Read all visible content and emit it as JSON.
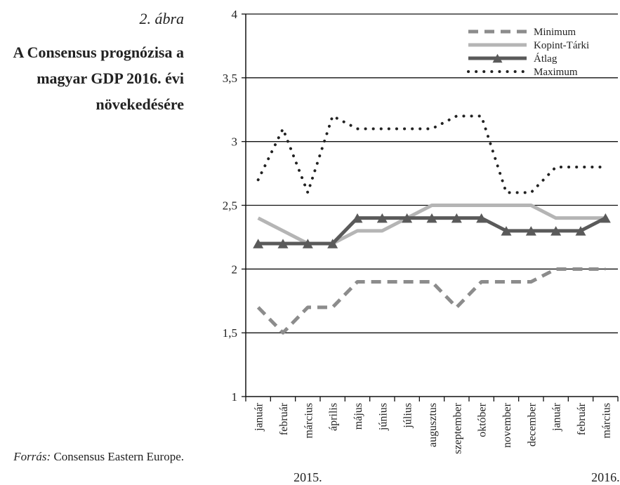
{
  "figure": {
    "number": "2. ábra",
    "title": "A Consensus prognózisa a magyar GDP 2016. évi növekedésére",
    "source_label": "Forrás:",
    "source_text": "Consensus Eastern Europe."
  },
  "chart_data": {
    "type": "line",
    "title": "",
    "xlabel": "",
    "ylabel": "",
    "categories": [
      "január",
      "február",
      "március",
      "április",
      "május",
      "június",
      "július",
      "augusztus",
      "szeptember",
      "október",
      "november",
      "december",
      "január",
      "február",
      "március"
    ],
    "year_labels": [
      {
        "text": "2015.",
        "index": 2
      },
      {
        "text": "2016.",
        "index": 14
      }
    ],
    "ylim": [
      1,
      4
    ],
    "yticks": [
      1,
      1.5,
      2,
      2.5,
      3,
      3.5,
      4
    ],
    "ytick_labels": [
      "1",
      "1,5",
      "2",
      "2,5",
      "3",
      "3,5",
      "4"
    ],
    "grid": true,
    "legend_position": "top-right",
    "series": [
      {
        "name": "Minimum",
        "style": "dashed",
        "color": "#8c8c8c",
        "values": [
          1.7,
          1.5,
          1.7,
          1.7,
          1.9,
          1.9,
          1.9,
          1.9,
          1.7,
          1.9,
          1.9,
          1.9,
          2.0,
          2.0,
          2.0
        ]
      },
      {
        "name": "Kopint-Tárki",
        "style": "solid-light",
        "color": "#b5b5b5",
        "values": [
          2.4,
          2.3,
          2.2,
          2.2,
          2.3,
          2.3,
          2.4,
          2.5,
          2.5,
          2.5,
          2.5,
          2.5,
          2.4,
          2.4,
          2.4
        ]
      },
      {
        "name": "Átlag",
        "style": "solid-triangle",
        "color": "#5a5a5a",
        "values": [
          2.2,
          2.2,
          2.2,
          2.2,
          2.4,
          2.4,
          2.4,
          2.4,
          2.4,
          2.4,
          2.3,
          2.3,
          2.3,
          2.3,
          2.4
        ]
      },
      {
        "name": "Maximum",
        "style": "dotted",
        "color": "#222222",
        "values": [
          2.7,
          3.1,
          2.6,
          3.2,
          3.1,
          3.1,
          3.1,
          3.1,
          3.2,
          3.2,
          2.6,
          2.6,
          2.8,
          2.8,
          2.8
        ]
      }
    ]
  }
}
